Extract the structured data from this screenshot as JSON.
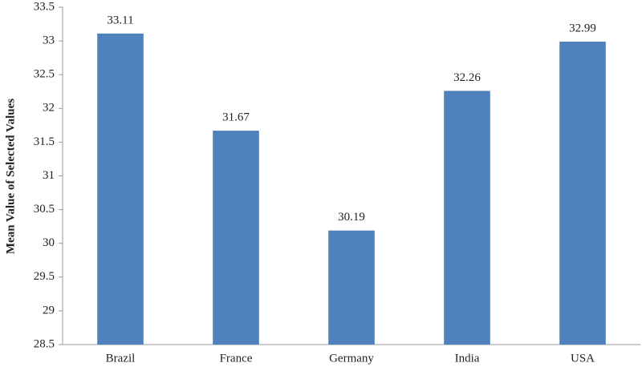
{
  "chart_data": {
    "type": "bar",
    "y_label": "Mean Value of Selected Values",
    "categories": [
      "Brazil",
      "France",
      "Germany",
      "India",
      "USA"
    ],
    "values": [
      33.11,
      31.67,
      30.19,
      32.26,
      32.99
    ],
    "color": "#4f81bd",
    "ylim": [
      28.5,
      33.5
    ],
    "yticks": [
      28.5,
      29,
      29.5,
      30,
      30.5,
      31,
      31.5,
      32,
      32.5,
      33,
      33.5
    ],
    "grid": false
  }
}
